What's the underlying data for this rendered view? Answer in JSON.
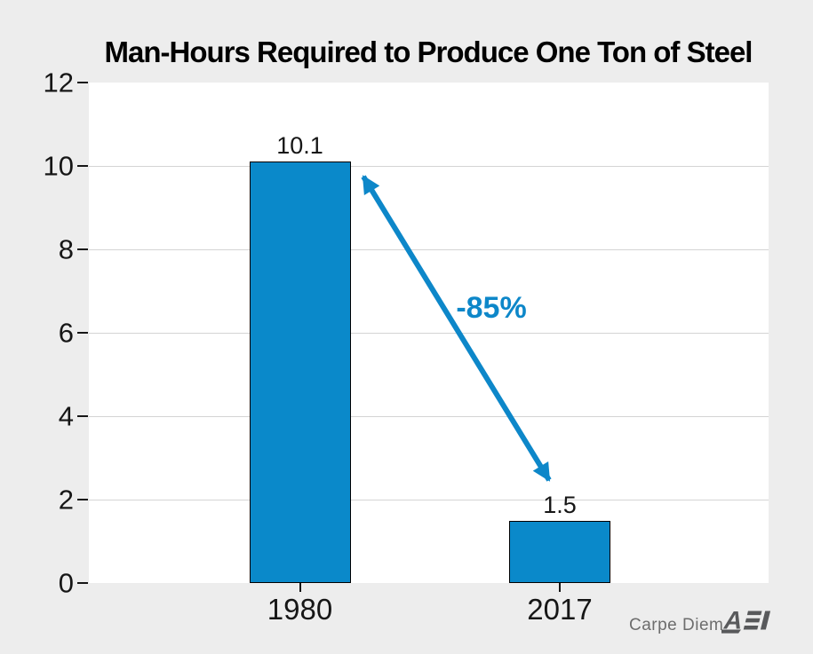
{
  "chart_data": {
    "type": "bar",
    "title": "Man-Hours Required to Produce One Ton of Steel",
    "categories": [
      "1980",
      "2017"
    ],
    "values": [
      10.1,
      1.5
    ],
    "bar_labels": [
      "10.1",
      "1.5"
    ],
    "xlabel": "",
    "ylabel": "",
    "ylim": [
      0,
      12
    ],
    "yticks": [
      0,
      2,
      4,
      6,
      8,
      10,
      12
    ],
    "grid": "horizontal gridlines at 2,4,6,8,10",
    "legend": "none",
    "bar_color": "#0a89ca",
    "bar_border_color": "#000000",
    "annotation": {
      "label": "-85%",
      "color": "#0d87c9",
      "arrow": "double-headed diagonal arrow from top of 1980 bar down to top of 2017 bar"
    },
    "colors": {
      "background": "#ededed",
      "plot_background": "#ffffff",
      "gridline": "#d4d4d4",
      "tick_text": "#161616"
    }
  },
  "footer": {
    "credit": "Carpe Diem",
    "logo": "AEI"
  }
}
